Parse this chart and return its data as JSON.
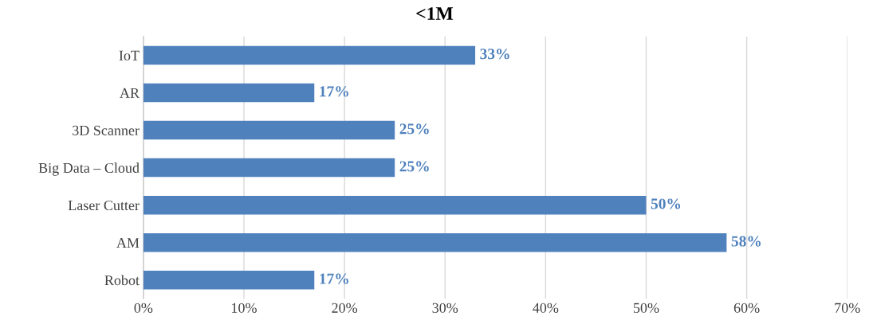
{
  "chart_data": {
    "type": "bar",
    "orientation": "horizontal",
    "title": "<1M",
    "categories": [
      "IoT",
      "AR",
      "3D Scanner",
      "Big Data – Cloud",
      "Laser Cutter",
      "AM",
      "Robot"
    ],
    "values": [
      33,
      17,
      25,
      25,
      50,
      58,
      17
    ],
    "value_labels": [
      "33%",
      "17%",
      "25%",
      "25%",
      "50%",
      "58%",
      "17%"
    ],
    "color": "#4f81bd",
    "xlim": [
      0,
      70
    ],
    "xticks": [
      {
        "value": 0,
        "label": "0%"
      },
      {
        "value": 10,
        "label": "10%"
      },
      {
        "value": 20,
        "label": "20%"
      },
      {
        "value": 30,
        "label": "30%"
      },
      {
        "value": 40,
        "label": "40%"
      },
      {
        "value": 50,
        "label": "50%"
      },
      {
        "value": 60,
        "label": "60%"
      },
      {
        "value": 70,
        "label": "70%"
      }
    ],
    "grid": "x",
    "legend": false
  }
}
